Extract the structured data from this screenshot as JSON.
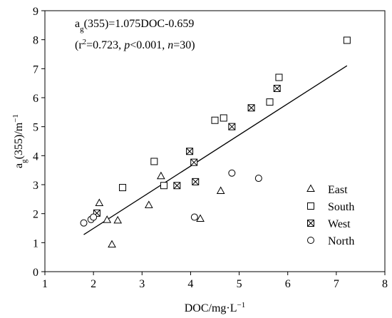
{
  "chart_data": {
    "type": "scatter",
    "annotations": [
      [
        {
          "text": "a"
        },
        {
          "text": "g",
          "shift": "sub"
        },
        {
          "text": "(355)=1.075DOC-0.659"
        }
      ],
      [
        {
          "text": "(r"
        },
        {
          "text": "2",
          "shift": "super"
        },
        {
          "text": "=0.723, "
        },
        {
          "text": "p",
          "italic": true
        },
        {
          "text": "<0.001, "
        },
        {
          "text": "n",
          "italic": true
        },
        {
          "text": "=30)"
        }
      ]
    ],
    "x_label": [
      {
        "text": "DOC/mg·L"
      },
      {
        "text": "−1",
        "shift": "super"
      }
    ],
    "y_label": [
      {
        "text": "a"
      },
      {
        "text": "g",
        "shift": "sub"
      },
      {
        "text": "(355)/m"
      },
      {
        "text": "−1",
        "shift": "super"
      }
    ],
    "xlim": [
      1,
      8
    ],
    "xticks": [
      1,
      2,
      3,
      4,
      5,
      6,
      7,
      8
    ],
    "ylim": [
      0,
      9
    ],
    "yticks": [
      0,
      1,
      2,
      3,
      4,
      5,
      6,
      7,
      8,
      9
    ],
    "grid": false,
    "legend": "right",
    "fit": {
      "slope": 1.075,
      "intercept": -0.659,
      "x": [
        1.8,
        7.22
      ],
      "color": "#000000"
    },
    "series": [
      {
        "name": "East",
        "marker": "triangle",
        "color": "#000000",
        "x": [
          2.12,
          2.28,
          2.5,
          2.38,
          3.14,
          3.39,
          4.2,
          4.62
        ],
        "y": [
          2.36,
          1.78,
          1.76,
          0.93,
          2.29,
          3.29,
          1.82,
          2.78
        ]
      },
      {
        "name": "South",
        "marker": "square",
        "color": "#000000",
        "x": [
          2.6,
          3.25,
          3.45,
          4.5,
          4.68,
          5.63,
          5.82,
          7.22
        ],
        "y": [
          2.9,
          3.8,
          2.97,
          5.22,
          5.3,
          5.85,
          6.7,
          7.98
        ]
      },
      {
        "name": "West",
        "marker": "crossed-square",
        "color": "#000000",
        "x": [
          2.07,
          3.72,
          3.98,
          4.07,
          4.1,
          4.85,
          5.25,
          5.78
        ],
        "y": [
          2.02,
          2.97,
          4.15,
          3.77,
          3.1,
          5.0,
          5.65,
          6.32
        ]
      },
      {
        "name": "North",
        "marker": "circle",
        "color": "#000000",
        "x": [
          1.8,
          1.95,
          2.0,
          4.08,
          4.85,
          5.4
        ],
        "y": [
          1.68,
          1.8,
          1.88,
          1.88,
          3.4,
          3.22
        ]
      }
    ]
  }
}
